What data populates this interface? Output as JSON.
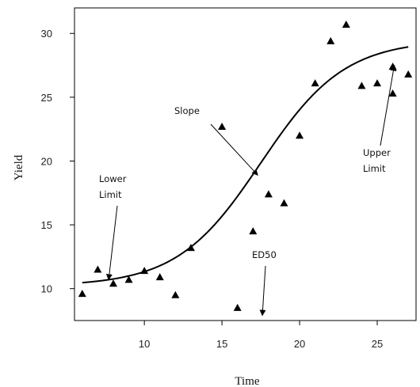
{
  "chart_data": {
    "type": "scatter",
    "xlabel": "Time",
    "ylabel": "Yield",
    "xlim": [
      5.5,
      27.5
    ],
    "ylim": [
      7.5,
      32
    ],
    "xticks": [
      10,
      15,
      20,
      25
    ],
    "yticks": [
      10,
      15,
      20,
      25,
      30
    ],
    "grid": false,
    "points": [
      {
        "x": 6,
        "y": 9.6
      },
      {
        "x": 7,
        "y": 11.5
      },
      {
        "x": 8,
        "y": 10.4
      },
      {
        "x": 9,
        "y": 10.7
      },
      {
        "x": 10,
        "y": 11.4
      },
      {
        "x": 11,
        "y": 10.9
      },
      {
        "x": 12,
        "y": 9.5
      },
      {
        "x": 13,
        "y": 13.2
      },
      {
        "x": 15,
        "y": 22.7
      },
      {
        "x": 16,
        "y": 8.5
      },
      {
        "x": 17,
        "y": 14.5
      },
      {
        "x": 18,
        "y": 17.4
      },
      {
        "x": 19,
        "y": 16.7
      },
      {
        "x": 20,
        "y": 22.0
      },
      {
        "x": 21,
        "y": 26.1
      },
      {
        "x": 22,
        "y": 29.4
      },
      {
        "x": 23,
        "y": 30.7
      },
      {
        "x": 24,
        "y": 25.9
      },
      {
        "x": 25,
        "y": 26.1
      },
      {
        "x": 26,
        "y": 25.3
      },
      {
        "x": 26,
        "y": 27.4
      },
      {
        "x": 27,
        "y": 26.8
      }
    ],
    "curve": {
      "model": "logistic",
      "lower": 10.2,
      "upper": 29.5,
      "ed50": 17.5,
      "scale": 2.7,
      "x_range": [
        6,
        27
      ]
    },
    "annotations": [
      {
        "id": "lower-limit",
        "lines": [
          "Lower",
          "Limit"
        ],
        "target": [
          7.7,
          10.7
        ]
      },
      {
        "id": "slope",
        "lines": [
          "Slope"
        ],
        "target": [
          17.3,
          18.9
        ]
      },
      {
        "id": "ed50",
        "lines": [
          "ED50"
        ],
        "target": [
          17.6,
          7.9
        ]
      },
      {
        "id": "upper-limit",
        "lines": [
          "Upper",
          "Limit"
        ],
        "target": [
          26.1,
          27.5
        ]
      }
    ]
  }
}
